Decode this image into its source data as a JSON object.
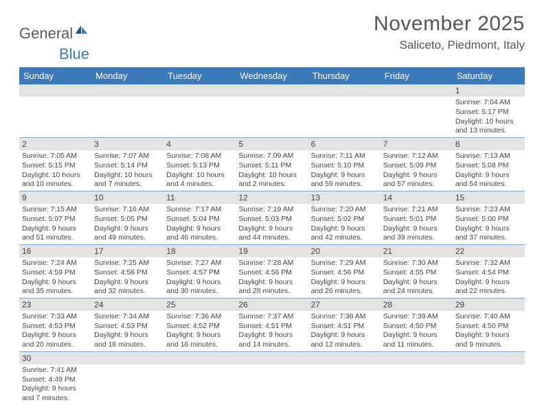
{
  "logo": {
    "part1": "General",
    "part2": "Blue"
  },
  "title": "November 2025",
  "location": "Saliceto, Piedmont, Italy",
  "colors": {
    "header_bg": "#3b7ab8",
    "header_text": "#ffffff",
    "daynum_bg": "#e3e3e3",
    "cell_border": "#7da7cf",
    "body_text": "#444444",
    "logo_gray": "#5a5a5a",
    "logo_blue": "#3b7ab8",
    "page_bg": "#ffffff"
  },
  "fonts": {
    "month_title_pt": 30,
    "location_pt": 17,
    "day_header_pt": 13,
    "daynum_pt": 12,
    "body_pt": 10.5
  },
  "days_of_week": [
    "Sunday",
    "Monday",
    "Tuesday",
    "Wednesday",
    "Thursday",
    "Friday",
    "Saturday"
  ],
  "weeks": [
    [
      null,
      null,
      null,
      null,
      null,
      null,
      {
        "n": "1",
        "sunrise": "Sunrise: 7:04 AM",
        "sunset": "Sunset: 5:17 PM",
        "daylight": "Daylight: 10 hours and 13 minutes."
      }
    ],
    [
      {
        "n": "2",
        "sunrise": "Sunrise: 7:05 AM",
        "sunset": "Sunset: 5:15 PM",
        "daylight": "Daylight: 10 hours and 10 minutes."
      },
      {
        "n": "3",
        "sunrise": "Sunrise: 7:07 AM",
        "sunset": "Sunset: 5:14 PM",
        "daylight": "Daylight: 10 hours and 7 minutes."
      },
      {
        "n": "4",
        "sunrise": "Sunrise: 7:08 AM",
        "sunset": "Sunset: 5:13 PM",
        "daylight": "Daylight: 10 hours and 4 minutes."
      },
      {
        "n": "5",
        "sunrise": "Sunrise: 7:09 AM",
        "sunset": "Sunset: 5:11 PM",
        "daylight": "Daylight: 10 hours and 2 minutes."
      },
      {
        "n": "6",
        "sunrise": "Sunrise: 7:11 AM",
        "sunset": "Sunset: 5:10 PM",
        "daylight": "Daylight: 9 hours and 59 minutes."
      },
      {
        "n": "7",
        "sunrise": "Sunrise: 7:12 AM",
        "sunset": "Sunset: 5:09 PM",
        "daylight": "Daylight: 9 hours and 57 minutes."
      },
      {
        "n": "8",
        "sunrise": "Sunrise: 7:13 AM",
        "sunset": "Sunset: 5:08 PM",
        "daylight": "Daylight: 9 hours and 54 minutes."
      }
    ],
    [
      {
        "n": "9",
        "sunrise": "Sunrise: 7:15 AM",
        "sunset": "Sunset: 5:07 PM",
        "daylight": "Daylight: 9 hours and 51 minutes."
      },
      {
        "n": "10",
        "sunrise": "Sunrise: 7:16 AM",
        "sunset": "Sunset: 5:05 PM",
        "daylight": "Daylight: 9 hours and 49 minutes."
      },
      {
        "n": "11",
        "sunrise": "Sunrise: 7:17 AM",
        "sunset": "Sunset: 5:04 PM",
        "daylight": "Daylight: 9 hours and 46 minutes."
      },
      {
        "n": "12",
        "sunrise": "Sunrise: 7:19 AM",
        "sunset": "Sunset: 5:03 PM",
        "daylight": "Daylight: 9 hours and 44 minutes."
      },
      {
        "n": "13",
        "sunrise": "Sunrise: 7:20 AM",
        "sunset": "Sunset: 5:02 PM",
        "daylight": "Daylight: 9 hours and 42 minutes."
      },
      {
        "n": "14",
        "sunrise": "Sunrise: 7:21 AM",
        "sunset": "Sunset: 5:01 PM",
        "daylight": "Daylight: 9 hours and 39 minutes."
      },
      {
        "n": "15",
        "sunrise": "Sunrise: 7:23 AM",
        "sunset": "Sunset: 5:00 PM",
        "daylight": "Daylight: 9 hours and 37 minutes."
      }
    ],
    [
      {
        "n": "16",
        "sunrise": "Sunrise: 7:24 AM",
        "sunset": "Sunset: 4:59 PM",
        "daylight": "Daylight: 9 hours and 35 minutes."
      },
      {
        "n": "17",
        "sunrise": "Sunrise: 7:25 AM",
        "sunset": "Sunset: 4:58 PM",
        "daylight": "Daylight: 9 hours and 32 minutes."
      },
      {
        "n": "18",
        "sunrise": "Sunrise: 7:27 AM",
        "sunset": "Sunset: 4:57 PM",
        "daylight": "Daylight: 9 hours and 30 minutes."
      },
      {
        "n": "19",
        "sunrise": "Sunrise: 7:28 AM",
        "sunset": "Sunset: 4:56 PM",
        "daylight": "Daylight: 9 hours and 28 minutes."
      },
      {
        "n": "20",
        "sunrise": "Sunrise: 7:29 AM",
        "sunset": "Sunset: 4:56 PM",
        "daylight": "Daylight: 9 hours and 26 minutes."
      },
      {
        "n": "21",
        "sunrise": "Sunrise: 7:30 AM",
        "sunset": "Sunset: 4:55 PM",
        "daylight": "Daylight: 9 hours and 24 minutes."
      },
      {
        "n": "22",
        "sunrise": "Sunrise: 7:32 AM",
        "sunset": "Sunset: 4:54 PM",
        "daylight": "Daylight: 9 hours and 22 minutes."
      }
    ],
    [
      {
        "n": "23",
        "sunrise": "Sunrise: 7:33 AM",
        "sunset": "Sunset: 4:53 PM",
        "daylight": "Daylight: 9 hours and 20 minutes."
      },
      {
        "n": "24",
        "sunrise": "Sunrise: 7:34 AM",
        "sunset": "Sunset: 4:53 PM",
        "daylight": "Daylight: 9 hours and 18 minutes."
      },
      {
        "n": "25",
        "sunrise": "Sunrise: 7:36 AM",
        "sunset": "Sunset: 4:52 PM",
        "daylight": "Daylight: 9 hours and 16 minutes."
      },
      {
        "n": "26",
        "sunrise": "Sunrise: 7:37 AM",
        "sunset": "Sunset: 4:51 PM",
        "daylight": "Daylight: 9 hours and 14 minutes."
      },
      {
        "n": "27",
        "sunrise": "Sunrise: 7:38 AM",
        "sunset": "Sunset: 4:51 PM",
        "daylight": "Daylight: 9 hours and 12 minutes."
      },
      {
        "n": "28",
        "sunrise": "Sunrise: 7:39 AM",
        "sunset": "Sunset: 4:50 PM",
        "daylight": "Daylight: 9 hours and 11 minutes."
      },
      {
        "n": "29",
        "sunrise": "Sunrise: 7:40 AM",
        "sunset": "Sunset: 4:50 PM",
        "daylight": "Daylight: 9 hours and 9 minutes."
      }
    ],
    [
      {
        "n": "30",
        "sunrise": "Sunrise: 7:41 AM",
        "sunset": "Sunset: 4:49 PM",
        "daylight": "Daylight: 9 hours and 7 minutes."
      },
      null,
      null,
      null,
      null,
      null,
      null
    ]
  ]
}
